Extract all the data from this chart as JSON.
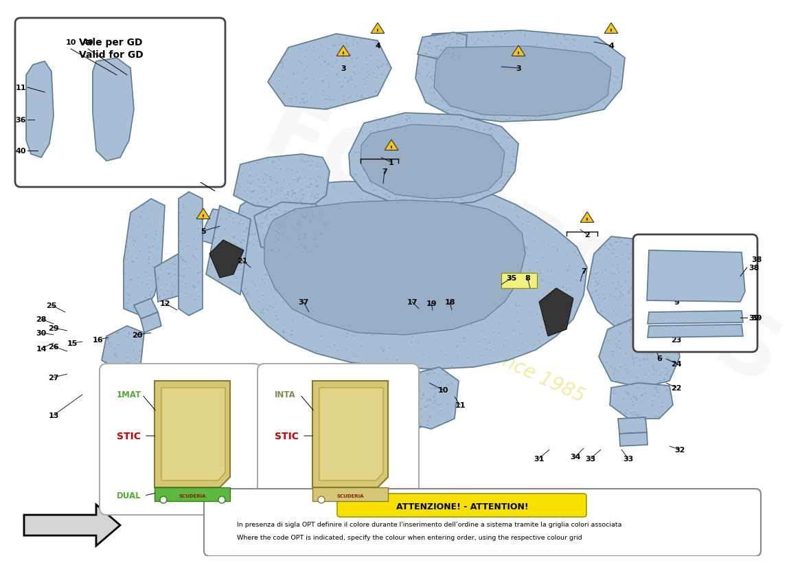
{
  "bg_color": "#ffffff",
  "carpet_color": "#a8bed4",
  "carpet_edge": "#5a7a96",
  "watermark_text": "a passion for parts since 1985",
  "watermark_color": "#e8d840",
  "brand_text": "FCOSPARTS",
  "brand_color": "#cccccc",
  "attention_title": "ATTENZIONE! - ATTENTION!",
  "attention_line1": "In presenza di sigla OPT definire il colore durante l'inserimento dell’ordine a sistema tramite la griglia colori associata",
  "attention_line2": "Where the code OPT is indicated, specify the colour when entering order, using the respective colour grid",
  "inset_label_top": "Vale per GD",
  "inset_label_bot": "Valid for GD",
  "mat1_labels": [
    "1MAT",
    "STIC",
    "DUAL"
  ],
  "mat1_colors": [
    "#55aa33",
    "#cc0000",
    "#55aa33"
  ],
  "mat2_labels": [
    "INTA",
    "STIC"
  ],
  "mat2_colors": [
    "#999955",
    "#cc0000"
  ]
}
